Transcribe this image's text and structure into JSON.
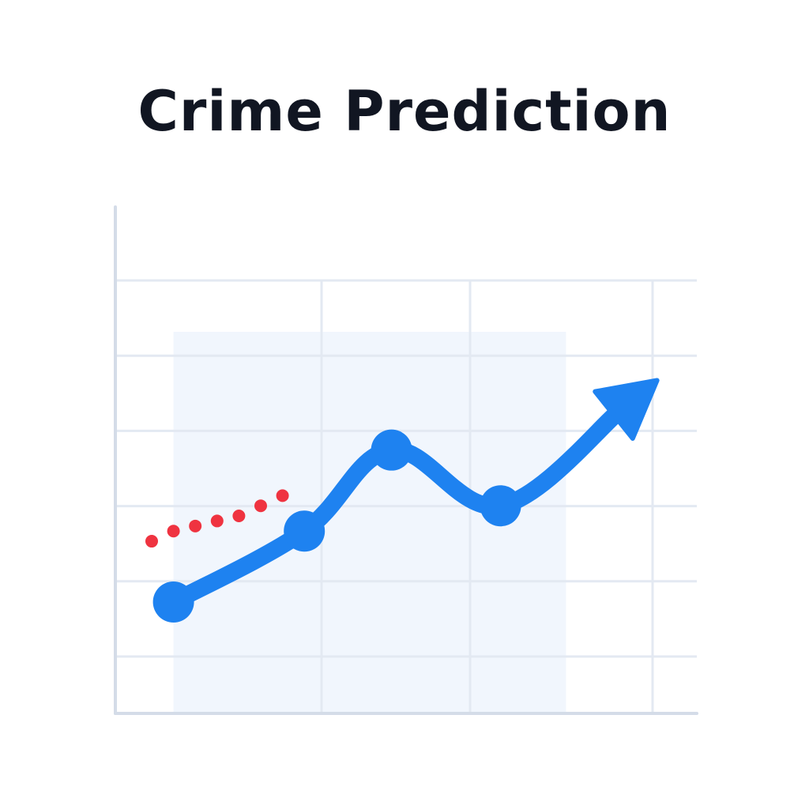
{
  "chart_data": {
    "type": "line",
    "title": "Crime Prediction",
    "xlabel": "",
    "ylabel": "",
    "grid": true,
    "xlim": [
      0,
      8
    ],
    "ylim": [
      0,
      10
    ],
    "series": [
      {
        "values": [
          {
            "x": 0.8,
            "y": 2.2
          },
          {
            "x": 2.6,
            "y": 3.6
          },
          {
            "x": 3.8,
            "y": 5.2
          },
          {
            "x": 5.3,
            "y": 4.1
          },
          {
            "x": 7.3,
            "y": 6.4
          }
        ],
        "color": "#1e82f0",
        "style": "solid",
        "markers": true,
        "arrow_end": true
      },
      {
        "values": [
          {
            "x": 0.5,
            "y": 3.4
          },
          {
            "x": 0.8,
            "y": 3.6
          },
          {
            "x": 1.1,
            "y": 3.7
          },
          {
            "x": 1.4,
            "y": 3.8
          },
          {
            "x": 1.7,
            "y": 3.9
          },
          {
            "x": 2.0,
            "y": 4.1
          },
          {
            "x": 2.3,
            "y": 4.3
          }
        ],
        "color": "#ef3340",
        "style": "dotted",
        "markers": false
      }
    ],
    "shaded_region": {
      "x_start": 0.8,
      "x_end": 6.2,
      "color": "#f1f6fd"
    },
    "colors": {
      "axis": "#d4dce8",
      "grid": "#e3e9f2",
      "title": "#111622"
    }
  }
}
